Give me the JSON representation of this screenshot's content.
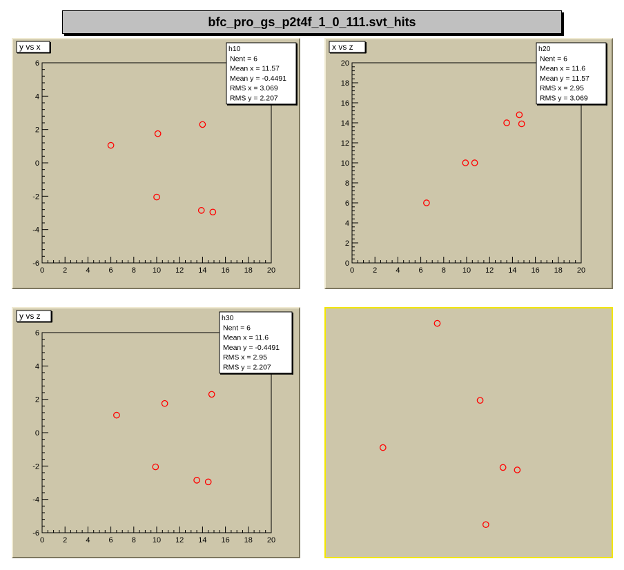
{
  "title": "bfc_pro_gs_p2t4f_1_0_111.svt_hits",
  "colors": {
    "pad_bg": "#cdc6aa",
    "marker": "#ff0000",
    "frame_bg": "#cdc6aa",
    "selected_border": "#f2e600"
  },
  "chart_data": [
    {
      "type": "scatter",
      "title": "y vs x",
      "xlim": [
        0,
        20
      ],
      "ylim": [
        -6,
        6
      ],
      "xticks": [
        "0",
        "2",
        "4",
        "6",
        "8",
        "10",
        "12",
        "14",
        "16",
        "18",
        "20"
      ],
      "yticks": [
        "-6",
        "-4",
        "-2",
        "0",
        "2",
        "4",
        "6"
      ],
      "x": [
        6.0,
        10.1,
        14.0,
        10.0,
        13.9,
        14.9
      ],
      "y": [
        1.05,
        1.75,
        2.3,
        -2.05,
        -2.85,
        -2.95
      ],
      "stats": {
        "name": "h10",
        "rows": [
          "Nent = 6",
          "Mean x = 11.57",
          "Mean y = -0.4491",
          "RMS x = 3.069",
          "RMS y = 2.207"
        ]
      }
    },
    {
      "type": "scatter",
      "title": "x vs z",
      "xlim": [
        0,
        20
      ],
      "ylim": [
        0,
        20
      ],
      "xticks": [
        "0",
        "2",
        "4",
        "6",
        "8",
        "10",
        "12",
        "14",
        "16",
        "18",
        "20"
      ],
      "yticks": [
        "0",
        "2",
        "4",
        "6",
        "8",
        "10",
        "12",
        "14",
        "16",
        "18",
        "20"
      ],
      "x": [
        6.5,
        9.9,
        10.7,
        13.5,
        14.6,
        14.8
      ],
      "y": [
        6.0,
        10.0,
        10.0,
        14.0,
        14.8,
        13.9
      ],
      "stats": {
        "name": "h20",
        "rows": [
          "Nent = 6",
          "Mean x = 11.6",
          "Mean y = 11.57",
          "RMS x = 2.95",
          "RMS y = 3.069"
        ]
      }
    },
    {
      "type": "scatter",
      "title": "y vs z",
      "xlim": [
        0,
        20
      ],
      "ylim": [
        -6,
        6
      ],
      "xticks": [
        "0",
        "2",
        "4",
        "6",
        "8",
        "10",
        "12",
        "14",
        "16",
        "18",
        "20"
      ],
      "yticks": [
        "-6",
        "-4",
        "-2",
        "0",
        "2",
        "4",
        "6"
      ],
      "x": [
        6.5,
        10.7,
        14.8,
        9.9,
        13.5,
        14.5
      ],
      "y": [
        1.05,
        1.75,
        2.3,
        -2.05,
        -2.85,
        -2.95
      ],
      "stats": {
        "name": "h30",
        "rows": [
          "Nent = 6",
          "Mean x = 11.6",
          "Mean y = -0.4491",
          "RMS x = 2.95",
          "RMS y = 2.207"
        ]
      }
    },
    {
      "type": "scatter",
      "title": "",
      "xlim": [
        0,
        1
      ],
      "ylim": [
        0,
        1
      ],
      "x": [
        0.39,
        0.54,
        0.67,
        0.56,
        0.62,
        0.2
      ],
      "y": [
        0.94,
        0.63,
        0.35,
        0.13,
        0.36,
        0.44
      ]
    }
  ]
}
